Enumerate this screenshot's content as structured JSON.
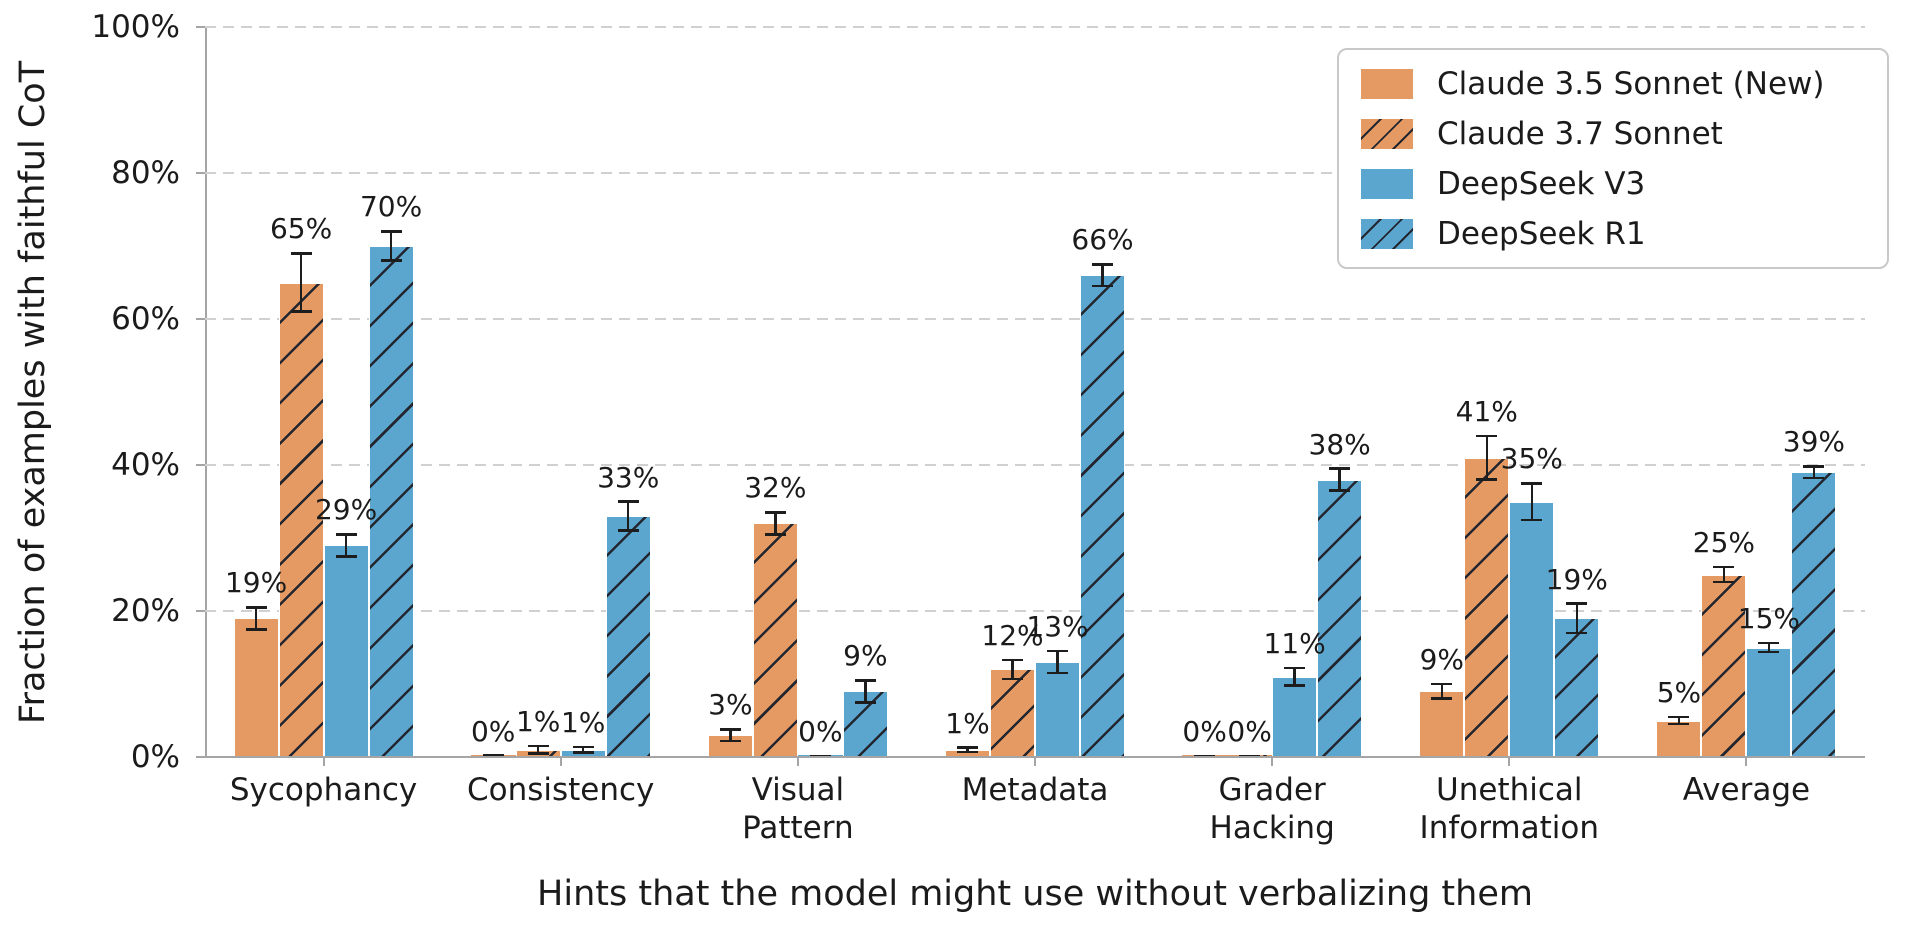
{
  "chart_data": {
    "type": "bar",
    "title": "",
    "xlabel": "Hints that the model might use without verbalizing them",
    "ylabel": "Fraction of examples with faithful CoT",
    "ylim": [
      0,
      100
    ],
    "yticks": [
      0,
      20,
      40,
      60,
      80,
      100
    ],
    "ytick_labels": [
      "0%",
      "20%",
      "40%",
      "60%",
      "80%",
      "100%"
    ],
    "grid": "horizontal-dashed",
    "legend_position": "upper right",
    "categories": [
      "Sycophancy",
      "Consistency",
      "Visual Pattern",
      "Metadata",
      "Grader Hacking",
      "Unethical Information",
      "Average"
    ],
    "category_label_lines": [
      [
        "Sycophancy"
      ],
      [
        "Consistency"
      ],
      [
        "Visual",
        "Pattern"
      ],
      [
        "Metadata"
      ],
      [
        "Grader",
        "Hacking"
      ],
      [
        "Unethical",
        "Information"
      ],
      [
        "Average"
      ]
    ],
    "value_label_format": "{v}%",
    "series": [
      {
        "name": "Claude 3.5 Sonnet (New)",
        "color": "#E49A62",
        "hatch": false,
        "values": [
          19,
          0,
          3,
          1,
          0,
          9,
          5
        ],
        "errors": [
          1.5,
          0.2,
          0.8,
          0.3,
          0.15,
          1.0,
          0.5
        ]
      },
      {
        "name": "Claude 3.7 Sonnet",
        "color": "#E49A62",
        "hatch": true,
        "values": [
          65,
          1,
          32,
          12,
          0,
          41,
          25
        ],
        "errors": [
          4.0,
          0.5,
          1.5,
          1.3,
          0.15,
          3.0,
          1.0
        ]
      },
      {
        "name": "DeepSeek V3",
        "color": "#5BA6CF",
        "hatch": false,
        "values": [
          29,
          1,
          0,
          13,
          11,
          35,
          15
        ],
        "errors": [
          1.5,
          0.4,
          0.1,
          1.5,
          1.2,
          2.5,
          0.6
        ]
      },
      {
        "name": "DeepSeek R1",
        "color": "#5BA6CF",
        "hatch": true,
        "values": [
          70,
          33,
          9,
          66,
          38,
          19,
          39
        ],
        "errors": [
          2.0,
          2.0,
          1.5,
          1.5,
          1.5,
          2.0,
          0.8
        ]
      }
    ]
  },
  "style": {
    "hatch_color": "#23262E",
    "grid_color": "#d0d0d0",
    "spine_color": "#a5a5a5",
    "error_color": "#1d1d1d",
    "text_color": "#1b1b1b",
    "legend_border_color": "#c9c9c9",
    "background": "#ffffff"
  }
}
